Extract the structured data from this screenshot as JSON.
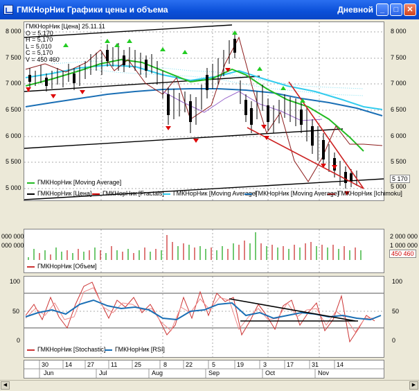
{
  "window": {
    "title": "ГМКНорНик Графики цены и объема",
    "period": "Дневной",
    "buttons": {
      "minimize": "_",
      "maximize": "□",
      "close": "✕"
    }
  },
  "price_panel": {
    "info": {
      "header": "ГМКНорНик [Цена] 25.11.11",
      "open": "O = 5,170",
      "high": "H = 5,170",
      "low": "L = 5,010",
      "close": "C = 5,170",
      "volume": "V = 450 460"
    },
    "y_ticks": [
      "8 000",
      "7 500",
      "7 000",
      "6 500",
      "6 000",
      "5 500",
      "5 000"
    ],
    "y_ticks_right": [
      "8 000",
      "7 500",
      "7 000",
      "6 500",
      "6 000",
      "5 500",
      "5 000"
    ],
    "last_price": "5 170",
    "legend": [
      {
        "label": "ГМКНорНик [Moving Average]",
        "color": "#22bb22"
      },
      {
        "label": "ГМКНорНик [Цена]",
        "color": "#000000"
      },
      {
        "label": "ГМКНорНик [Fractals]",
        "color": "#cc0000"
      },
      {
        "label": "ГМКНорНик [Moving Average]",
        "color": "#33ccee"
      },
      {
        "label": "ГМКНорНик [Moving Average]",
        "color": "#1a6fb5"
      },
      {
        "label": "ГМКНорНик [Ichimoku]",
        "color": "#8b1a1a"
      }
    ]
  },
  "volume_panel": {
    "y_ticks_left": [
      "000 000",
      "000 000"
    ],
    "y_ticks_right": [
      "2 000 000",
      "1 000 000"
    ],
    "last_volume": "450 460",
    "legend": [
      {
        "label": "ГМКНорНик [Объем]",
        "color": "#cc3333"
      }
    ]
  },
  "oscillator_panel": {
    "y_ticks_left": [
      "100",
      "50",
      "0"
    ],
    "y_ticks_right": [
      "100",
      "50",
      "0"
    ],
    "legend": [
      {
        "label": "ГМКНорНик [Stochastic]",
        "color": "#cc3333"
      },
      {
        "label": "ГМКНорНик [RSI]",
        "color": "#1a6fb5"
      }
    ]
  },
  "date_axis": {
    "days": [
      "30",
      "14",
      "27",
      "11",
      "25",
      "8",
      "22",
      "5",
      "19",
      "3",
      "17",
      "31",
      "14"
    ],
    "months": [
      "Jun",
      "Jul",
      "Aug",
      "Sep",
      "Oct",
      "Nov"
    ]
  },
  "colors": {
    "up_fractal": "#22cc22",
    "down_fractal": "#dd0000",
    "candle": "#000000",
    "ma_green": "#22bb22",
    "ma_cyan": "#33ccee",
    "ma_blue": "#1a6fb5",
    "ichimoku": "#8b1a1a",
    "trend_red": "#cc2222"
  }
}
